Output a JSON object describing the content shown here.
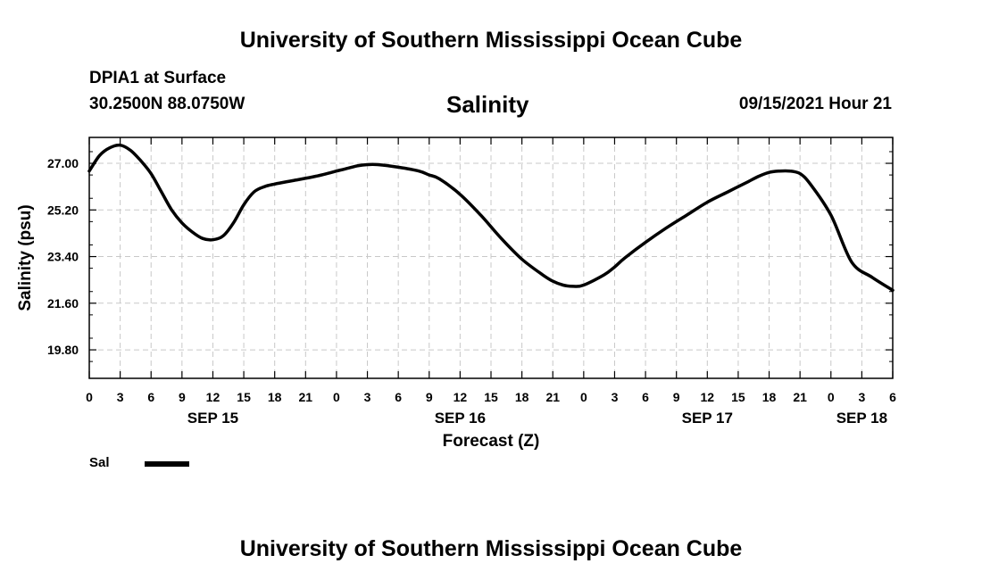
{
  "header": {
    "title": "University of Southern Mississippi Ocean Cube",
    "station": "DPIA1 at Surface",
    "coords": "30.2500N  88.0750W",
    "date": "09/15/2021 Hour 21"
  },
  "footer": {
    "title": "University of Southern Mississippi Ocean Cube"
  },
  "chart_data": {
    "type": "line",
    "title": "Salinity",
    "xlabel": "Forecast (Z)",
    "ylabel": "Salinity (psu)",
    "ylim": [
      18.7,
      28.0
    ],
    "xlim": [
      0,
      78
    ],
    "grid": true,
    "legend_position": "bottom-left",
    "y_ticks": [
      "27.00",
      "25.20",
      "23.40",
      "21.60",
      "19.80"
    ],
    "x_tick_labels": [
      "0",
      "3",
      "6",
      "9",
      "12",
      "15",
      "18",
      "21",
      "0",
      "3",
      "6",
      "9",
      "12",
      "15",
      "18",
      "21",
      "0",
      "3",
      "6",
      "9",
      "12",
      "15",
      "18",
      "21",
      "0",
      "3",
      "6"
    ],
    "day_labels": [
      {
        "label": "SEP 15",
        "hour": 12
      },
      {
        "label": "SEP 16",
        "hour": 36
      },
      {
        "label": "SEP 17",
        "hour": 60
      },
      {
        "label": "SEP 18",
        "hour": 75
      }
    ],
    "series": [
      {
        "name": "Sal",
        "color": "#000000",
        "x": [
          0,
          1,
          2,
          3,
          4,
          5,
          6,
          7,
          8,
          9,
          10,
          11,
          12,
          13,
          14,
          15,
          16,
          17,
          18,
          20,
          22,
          24,
          25,
          26,
          27,
          28,
          30,
          32,
          33,
          34,
          36,
          38,
          40,
          42,
          44,
          45,
          46,
          47,
          48,
          50,
          51,
          52,
          54,
          56,
          58,
          60,
          62,
          63,
          64,
          65,
          66,
          67,
          68,
          69,
          70,
          72,
          74,
          76,
          78
        ],
        "values": [
          26.7,
          27.3,
          27.6,
          27.7,
          27.5,
          27.1,
          26.6,
          25.9,
          25.2,
          24.7,
          24.35,
          24.1,
          24.05,
          24.2,
          24.7,
          25.4,
          25.9,
          26.1,
          26.2,
          26.35,
          26.5,
          26.7,
          26.8,
          26.9,
          26.95,
          26.95,
          26.85,
          26.7,
          26.55,
          26.4,
          25.8,
          25.0,
          24.1,
          23.3,
          22.7,
          22.45,
          22.3,
          22.25,
          22.3,
          22.7,
          23.0,
          23.35,
          23.95,
          24.5,
          25.0,
          25.5,
          25.9,
          26.1,
          26.3,
          26.5,
          26.65,
          26.7,
          26.7,
          26.6,
          26.2,
          25.0,
          23.2,
          22.6,
          22.1
        ]
      }
    ]
  },
  "legend": {
    "label": "Sal"
  }
}
